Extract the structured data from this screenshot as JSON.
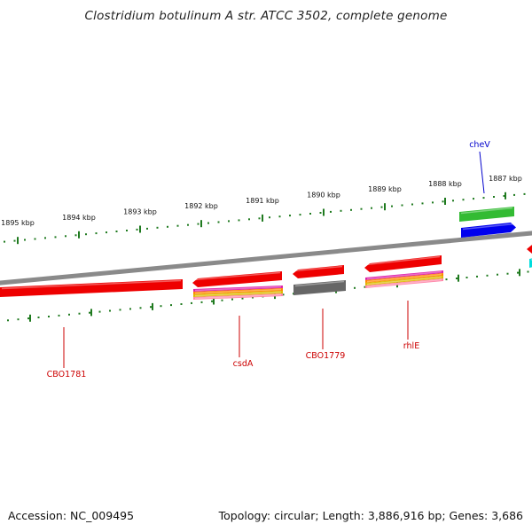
{
  "title": "Clostridium botulinum A str. ATCC 3502, complete genome",
  "accession": "Accession: NC_009495",
  "stats": "Topology: circular; Length: 3,886,916 bp; Genes: 3,686",
  "colors": {
    "backbone": "#8a8a8a",
    "tick": "#1f7a1f",
    "red": "#ee0000",
    "gray": "#666666",
    "green": "#33bb33",
    "blue": "#0000ee",
    "magenta": "#dd22aa",
    "orange": "#ff8800",
    "yellow": "#ddbb00",
    "pink": "#ff88aa",
    "cyan": "#00dddd",
    "label_red": "#cc0000",
    "label_blue": "#0000cc"
  },
  "ruler_labels": [
    "1895 kbp",
    "1894 kbp",
    "1893 kbp",
    "1892 kbp",
    "1891 kbp",
    "1890 kbp",
    "1889 kbp",
    "1888 kbp",
    "1887 kbp"
  ],
  "gene_labels": [
    {
      "name": "CBO1781",
      "color": "label_red"
    },
    {
      "name": "csdA",
      "color": "label_red"
    },
    {
      "name": "CBO1779",
      "color": "label_red"
    },
    {
      "name": "rhlE",
      "color": "label_red"
    },
    {
      "name": "cheV",
      "color": "label_blue"
    }
  ]
}
